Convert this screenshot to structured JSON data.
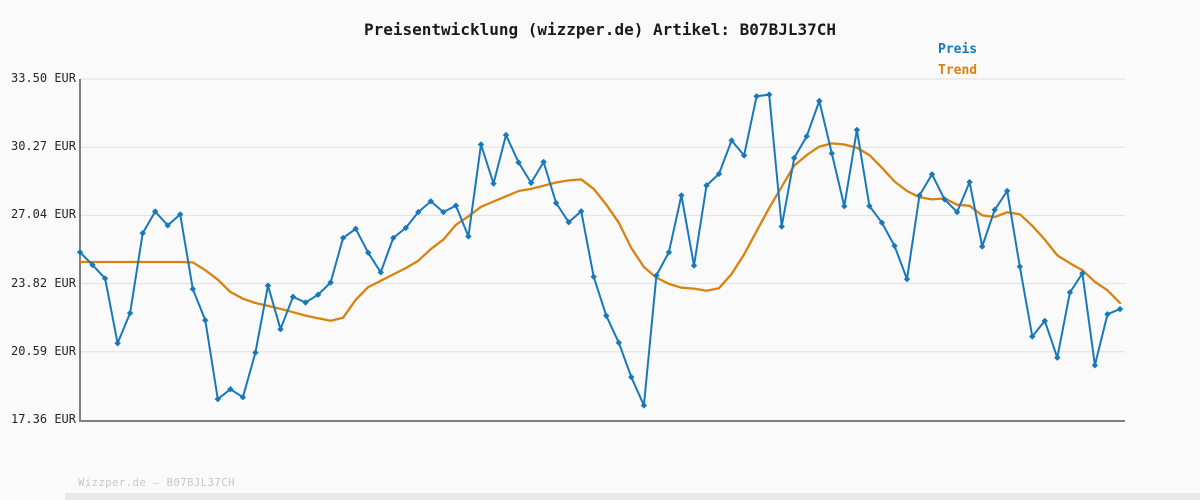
{
  "header": {
    "title": "Preisentwicklung (wizzper.de) Artikel: B07BJL37CH"
  },
  "legend": {
    "preis_label": "Preis",
    "trend_label": "Trend"
  },
  "footer": {
    "note": "Wizzper.de – B07BJL37CH"
  },
  "colors": {
    "preis": "#1878bc",
    "trend": "#d9820f",
    "grid": "#e4e4e4",
    "axis": "#808080",
    "background": "#fafafa"
  },
  "chart_data": {
    "type": "line",
    "title": "Preisentwicklung (wizzper.de) Artikel: B07BJL37CH",
    "xlabel": "",
    "ylabel": "EUR",
    "grid": "horizontal",
    "legend_position": "top-right",
    "ylim": [
      17.36,
      33.5
    ],
    "y_ticks": [
      "33.50 EUR",
      "30.27 EUR",
      "27.04 EUR",
      "23.82 EUR",
      "20.59 EUR",
      "17.36 EUR"
    ],
    "y_tick_values": [
      33.5,
      30.27,
      27.04,
      23.82,
      20.59,
      17.36
    ],
    "x_point_count": 84,
    "series": [
      {
        "name": "Preis",
        "color": "#1878bc",
        "marker": "diamond",
        "values": [
          25.3,
          24.7,
          24.06,
          20.99,
          22.42,
          26.2,
          27.23,
          26.57,
          27.09,
          23.56,
          22.08,
          18.35,
          18.82,
          18.44,
          20.55,
          23.72,
          21.66,
          23.19,
          22.92,
          23.29,
          23.87,
          25.98,
          26.41,
          25.28,
          24.35,
          25.98,
          26.45,
          27.2,
          27.71,
          27.2,
          27.51,
          26.05,
          30.4,
          28.55,
          30.85,
          29.55,
          28.58,
          29.57,
          27.63,
          26.72,
          27.24,
          24.14,
          22.29,
          21.02,
          19.39,
          18.05,
          24.2,
          25.3,
          27.99,
          24.67,
          28.46,
          29.01,
          30.59,
          29.88,
          32.68,
          32.76,
          26.52,
          29.76,
          30.79,
          32.46,
          29.98,
          27.48,
          31.09,
          27.49,
          26.7,
          25.6,
          24.03,
          27.99,
          28.99,
          27.8,
          27.2,
          28.62,
          25.57,
          27.31,
          28.2,
          24.62,
          21.31,
          22.05,
          20.31,
          23.4,
          24.3,
          19.95,
          22.37,
          22.61
        ]
      },
      {
        "name": "Trend",
        "color": "#d9820f",
        "marker": "none",
        "values": [
          24.84,
          24.84,
          24.84,
          24.84,
          24.84,
          24.84,
          24.84,
          24.84,
          24.84,
          24.82,
          24.45,
          24.0,
          23.42,
          23.1,
          22.9,
          22.76,
          22.62,
          22.46,
          22.3,
          22.18,
          22.06,
          22.2,
          23.05,
          23.65,
          23.95,
          24.25,
          24.55,
          24.9,
          25.45,
          25.9,
          26.6,
          27.0,
          27.45,
          27.7,
          27.95,
          28.2,
          28.3,
          28.45,
          28.6,
          28.7,
          28.75,
          28.3,
          27.55,
          26.7,
          25.5,
          24.6,
          24.1,
          23.8,
          23.62,
          23.58,
          23.48,
          23.6,
          24.27,
          25.2,
          26.3,
          27.4,
          28.4,
          29.4,
          29.9,
          30.3,
          30.45,
          30.4,
          30.25,
          29.9,
          29.3,
          28.65,
          28.2,
          27.9,
          27.8,
          27.85,
          27.55,
          27.5,
          27.05,
          26.97,
          27.19,
          27.1,
          26.55,
          25.9,
          25.15,
          24.78,
          24.45,
          23.9,
          23.5,
          22.9
        ]
      }
    ]
  }
}
